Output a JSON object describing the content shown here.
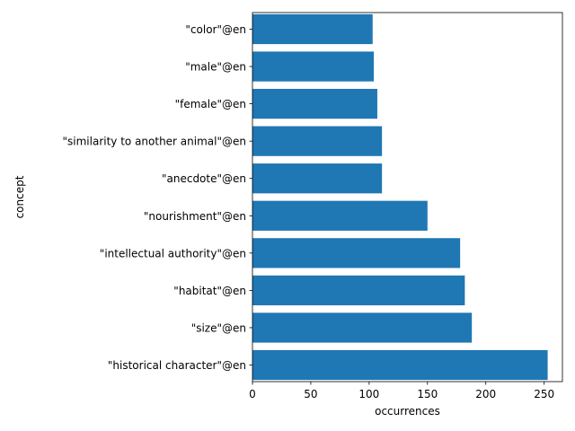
{
  "chart_data": {
    "type": "bar",
    "orientation": "horizontal",
    "categories": [
      "\"historical character\"@en",
      "\"size\"@en",
      "\"habitat\"@en",
      "\"intellectual authority\"@en",
      "\"nourishment\"@en",
      "\"anecdote\"@en",
      "\"similarity to another animal\"@en",
      "\"female\"@en",
      "\"male\"@en",
      "\"color\"@en"
    ],
    "values": [
      253,
      188,
      182,
      178,
      150,
      111,
      111,
      107,
      104,
      103
    ],
    "xlabel": "occurrences",
    "ylabel": "concept",
    "xlim": [
      0,
      265.65
    ],
    "xticks": [
      0,
      50,
      100,
      150,
      200,
      250
    ],
    "grid": false,
    "bar_color": "#1f77b4"
  }
}
